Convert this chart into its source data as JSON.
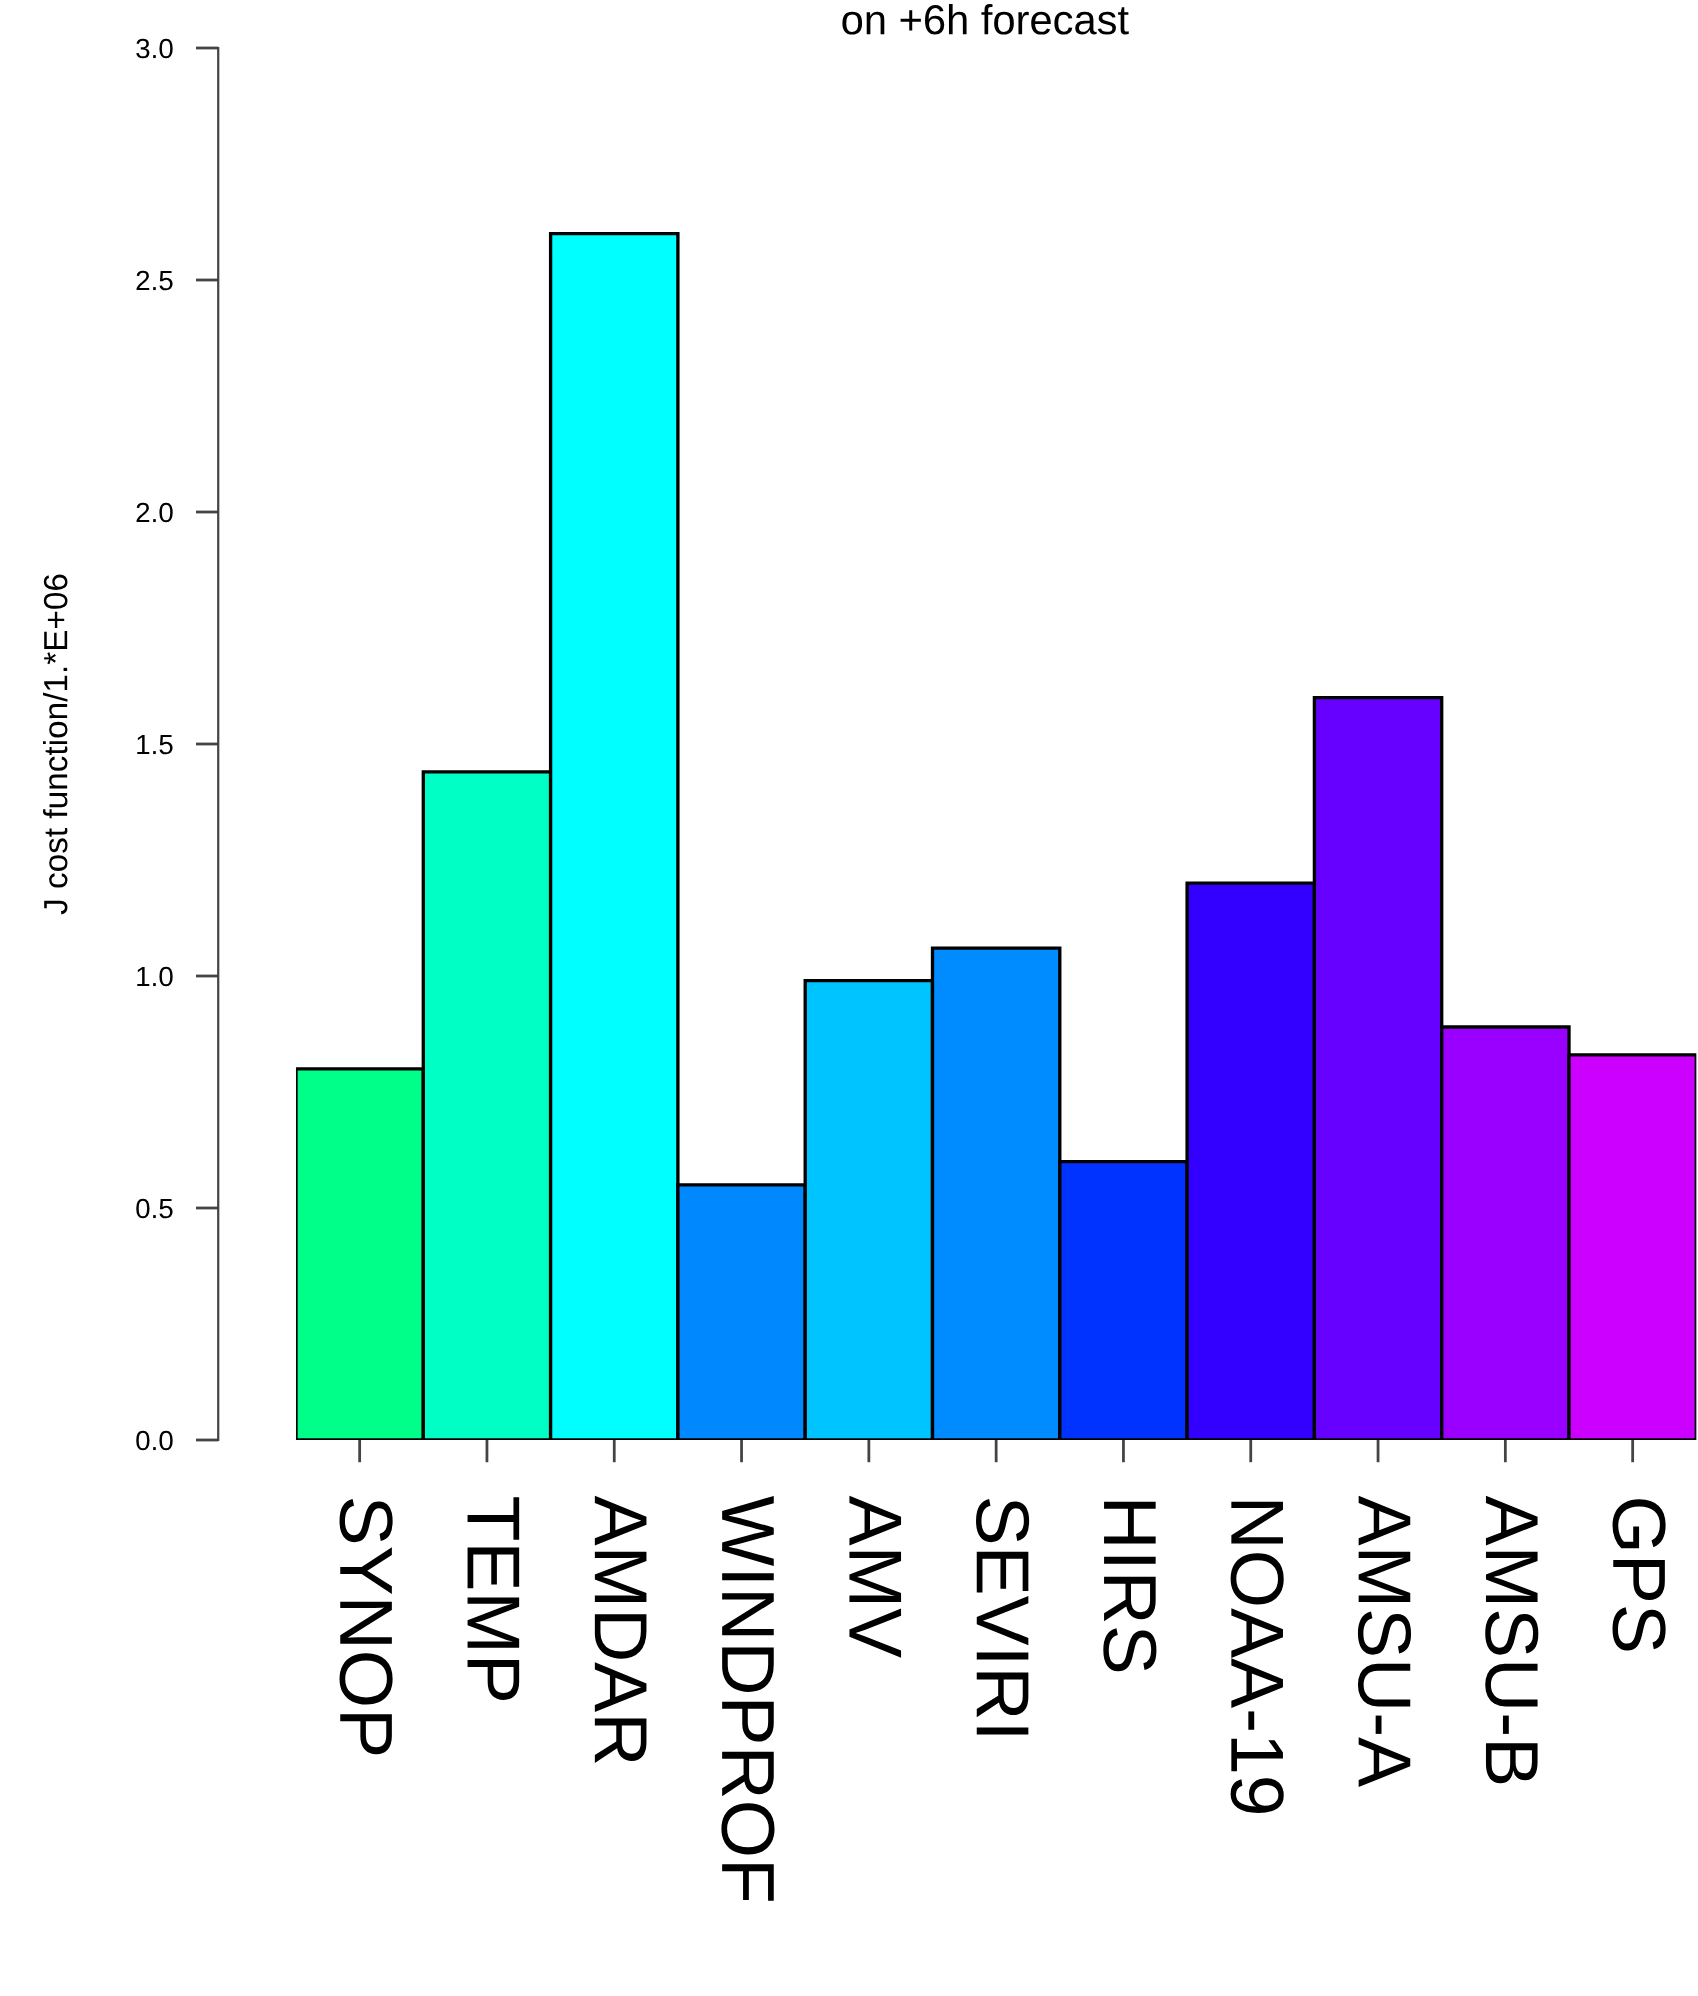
{
  "chart_data": {
    "type": "bar",
    "title": "on +6h forecast",
    "ylabel": "J cost function/1.*E+06",
    "categories": [
      "SYNOP",
      "TEMP",
      "AMDAR",
      "WINDPROF",
      "AMV",
      "SEVIRI",
      "HIRS",
      "NOAA-19",
      "AMSU-A",
      "AMSU-B",
      "GPS"
    ],
    "values": [
      0.8,
      1.44,
      2.6,
      0.55,
      0.99,
      1.06,
      0.6,
      1.2,
      1.6,
      0.89,
      0.83
    ],
    "colors": [
      "#00ff88",
      "#00ffc4",
      "#00ffff",
      "#0088ff",
      "#00c4ff",
      "#008cff",
      "#0033ff",
      "#3300ff",
      "#6600ff",
      "#9900ff",
      "#cc00ff"
    ],
    "ylim": [
      0,
      3
    ],
    "yticks": [
      {
        "value": 0,
        "label": "0.0"
      },
      {
        "value": 0.5,
        "label": "0.5"
      },
      {
        "value": 1,
        "label": "1.0"
      },
      {
        "value": 1.5,
        "label": "1.5"
      },
      {
        "value": 2,
        "label": "2.0"
      },
      {
        "value": 2.5,
        "label": "2.5"
      },
      {
        "value": 3,
        "label": "3.0"
      }
    ],
    "grid": false,
    "legend": false
  }
}
